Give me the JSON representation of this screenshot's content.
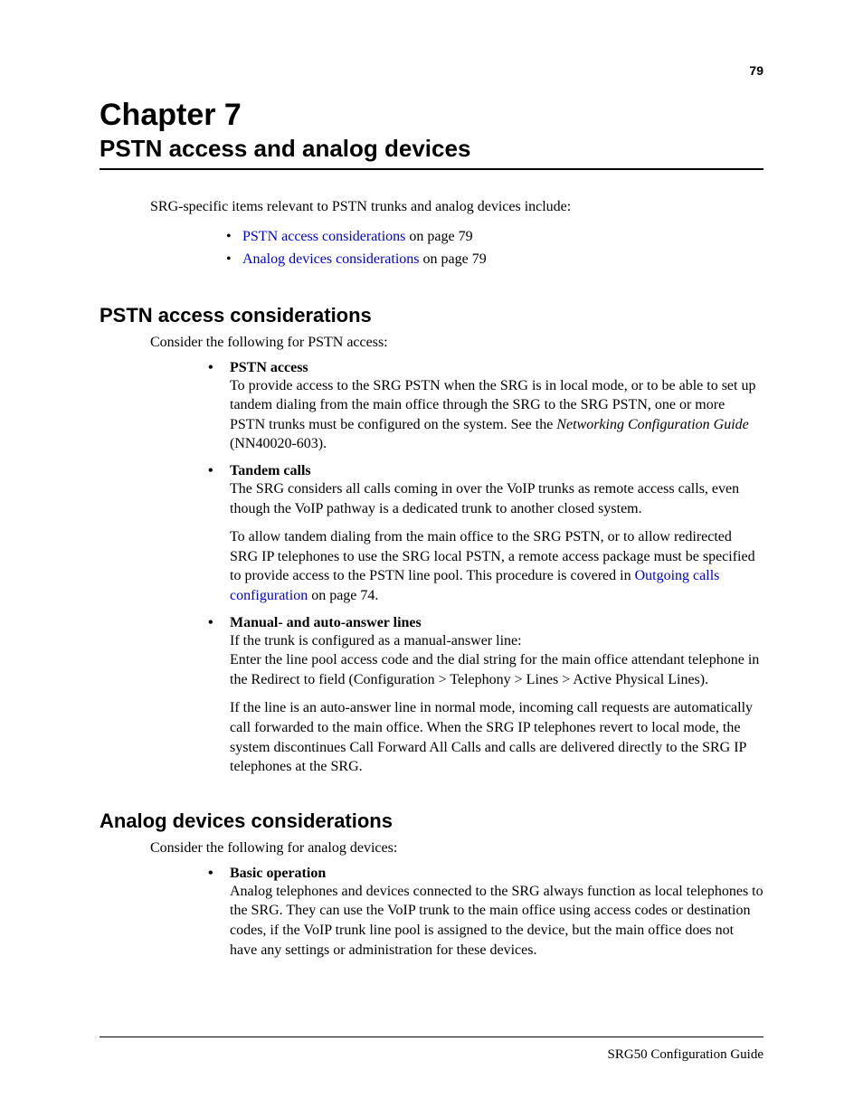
{
  "page_number": "79",
  "chapter": {
    "label": "Chapter 7",
    "title": "PSTN access and analog devices"
  },
  "intro": "SRG-specific items relevant to PSTN trunks and analog devices include:",
  "toc": [
    {
      "link": "PSTN access considerations",
      "suffix": " on page 79"
    },
    {
      "link": "Analog devices considerations",
      "suffix": " on page 79"
    }
  ],
  "section1": {
    "heading": "PSTN access considerations",
    "intro": "Consider the following for PSTN access:",
    "items": [
      {
        "title": "PSTN access",
        "body_pre": "To provide access to the SRG PSTN when the SRG is in local mode, or to be able to set up tandem dialing from the main office through the SRG to the SRG PSTN, one or more PSTN trunks must be configured on the system. See the ",
        "body_italic": "Networking Configuration Guide",
        "body_post": " (NN40020-603)."
      },
      {
        "title": "Tandem calls",
        "body": "The SRG considers all calls coming in over the VoIP trunks as remote access calls, even though the VoIP pathway is a dedicated trunk to another closed system.",
        "para2_pre": "To allow tandem dialing from the main office to the SRG PSTN, or to allow redirected SRG IP telephones to use the SRG local PSTN, a remote access package must be specified to provide access to the PSTN line pool. This procedure is covered in ",
        "para2_link": "Outgoing calls configuration",
        "para2_post": " on page 74."
      },
      {
        "title": "Manual- and auto-answer lines",
        "body": "If the trunk is configured as a manual-answer line:\nEnter the line pool access code and the dial string for the main office attendant telephone in the Redirect to field (Configuration > Telephony > Lines > Active Physical Lines).",
        "para2": "If the line is an auto-answer line in normal mode, incoming call requests are automatically call forwarded to the main office. When the SRG IP telephones revert to local mode, the system discontinues Call Forward All Calls and calls are delivered directly to the SRG IP telephones at the SRG."
      }
    ]
  },
  "section2": {
    "heading": "Analog devices considerations",
    "intro": "Consider the following for analog devices:",
    "items": [
      {
        "title": "Basic operation",
        "body": "Analog telephones and devices connected to the SRG always function as local telephones to the SRG. They can use the VoIP trunk to the main office using access codes or destination codes, if the VoIP trunk line pool is assigned to the device, but the main office does not have any settings or administration for these devices."
      }
    ]
  },
  "footer": "SRG50 Configuration Guide",
  "colors": {
    "text": "#000000",
    "link": "#0000cc",
    "background": "#ffffff"
  }
}
